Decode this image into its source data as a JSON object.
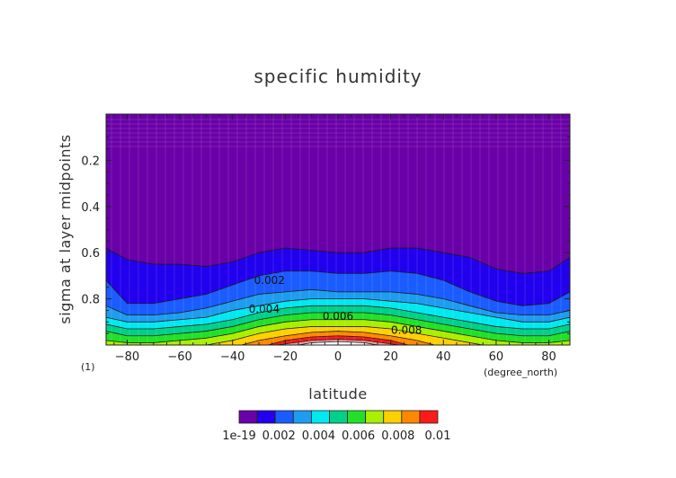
{
  "chart_data": {
    "type": "contour",
    "title": "specific humidity",
    "xlabel": "latitude",
    "ylabel": "sigma at layer midpoints",
    "x_units": "(degree_north)",
    "y_units": "(1)",
    "xlim": [
      -88,
      88
    ],
    "ylim": [
      1.0,
      0.0
    ],
    "x_ticks": [
      -80,
      -60,
      -40,
      -20,
      0,
      20,
      40,
      60,
      80
    ],
    "y_ticks": [
      0.2,
      0.4,
      0.6,
      0.8
    ],
    "levels": [
      0,
      0.001,
      0.002,
      0.003,
      0.004,
      0.005,
      0.006,
      0.007,
      0.008,
      0.009,
      0.01
    ],
    "colors": [
      "#6a00a8",
      "#2200ee",
      "#1a5cff",
      "#1e9cf0",
      "#00e8f0",
      "#00d08a",
      "#22e02a",
      "#aaee00",
      "#ffd000",
      "#ff8800",
      "#ff1a1a",
      "#f0a0a0",
      "#ffffff"
    ],
    "colorbar_ticks": [
      "1e-19",
      "0.002",
      "0.004",
      "0.006",
      "0.008",
      "0.01"
    ],
    "contour_labels": [
      {
        "text": "0.002",
        "lat": -26,
        "sigma": 0.72
      },
      {
        "text": "0.004",
        "lat": -28,
        "sigma": 0.845
      },
      {
        "text": "0.006",
        "lat": 0,
        "sigma": 0.875
      },
      {
        "text": "0.008",
        "lat": 26,
        "sigma": 0.935
      }
    ],
    "contour_boundaries": {
      "lat": [
        -88,
        -80,
        -70,
        -60,
        -50,
        -40,
        -30,
        -20,
        -10,
        0,
        10,
        20,
        30,
        40,
        50,
        60,
        70,
        80,
        88
      ],
      "levels_sigma": [
        [
          0.58,
          0.63,
          0.65,
          0.65,
          0.66,
          0.64,
          0.6,
          0.58,
          0.59,
          0.6,
          0.6,
          0.58,
          0.58,
          0.6,
          0.62,
          0.67,
          0.69,
          0.68,
          0.62
        ],
        [
          0.72,
          0.82,
          0.82,
          0.8,
          0.78,
          0.74,
          0.7,
          0.68,
          0.68,
          0.69,
          0.69,
          0.68,
          0.69,
          0.72,
          0.77,
          0.81,
          0.83,
          0.82,
          0.77
        ],
        [
          0.83,
          0.87,
          0.87,
          0.86,
          0.84,
          0.81,
          0.78,
          0.77,
          0.76,
          0.77,
          0.77,
          0.77,
          0.78,
          0.8,
          0.83,
          0.86,
          0.87,
          0.87,
          0.85
        ],
        [
          0.88,
          0.9,
          0.9,
          0.89,
          0.88,
          0.85,
          0.83,
          0.81,
          0.8,
          0.8,
          0.8,
          0.81,
          0.82,
          0.84,
          0.86,
          0.88,
          0.9,
          0.9,
          0.88
        ],
        [
          0.91,
          0.93,
          0.93,
          0.92,
          0.91,
          0.89,
          0.86,
          0.84,
          0.83,
          0.83,
          0.83,
          0.84,
          0.86,
          0.88,
          0.9,
          0.92,
          0.93,
          0.93,
          0.91
        ],
        [
          0.94,
          0.96,
          0.96,
          0.95,
          0.94,
          0.92,
          0.89,
          0.87,
          0.86,
          0.86,
          0.86,
          0.87,
          0.89,
          0.91,
          0.93,
          0.95,
          0.96,
          0.96,
          0.94
        ],
        [
          0.98,
          0.99,
          0.99,
          0.98,
          0.97,
          0.95,
          0.92,
          0.9,
          0.89,
          0.89,
          0.89,
          0.9,
          0.92,
          0.94,
          0.96,
          0.98,
          0.99,
          0.99,
          0.98
        ],
        [
          1.01,
          1.01,
          1.01,
          1.01,
          1.0,
          0.98,
          0.95,
          0.93,
          0.92,
          0.92,
          0.92,
          0.93,
          0.95,
          0.97,
          0.99,
          1.01,
          1.01,
          1.01,
          1.01
        ],
        [
          1.01,
          1.01,
          1.01,
          1.01,
          1.01,
          1.01,
          0.98,
          0.96,
          0.945,
          0.94,
          0.945,
          0.96,
          0.98,
          1.01,
          1.01,
          1.01,
          1.01,
          1.01,
          1.01
        ],
        [
          1.01,
          1.01,
          1.01,
          1.01,
          1.01,
          1.01,
          1.01,
          0.98,
          0.965,
          0.96,
          0.965,
          0.98,
          1.01,
          1.01,
          1.01,
          1.01,
          1.01,
          1.01,
          1.01
        ],
        [
          1.01,
          1.01,
          1.01,
          1.01,
          1.01,
          1.01,
          1.01,
          0.995,
          0.98,
          0.975,
          0.98,
          0.995,
          1.01,
          1.01,
          1.01,
          1.01,
          1.01,
          1.01,
          1.01
        ],
        [
          1.01,
          1.01,
          1.01,
          1.01,
          1.01,
          1.01,
          1.01,
          1.01,
          0.99,
          0.985,
          0.99,
          1.01,
          1.01,
          1.01,
          1.01,
          1.01,
          1.01,
          1.01,
          1.01
        ]
      ]
    }
  }
}
